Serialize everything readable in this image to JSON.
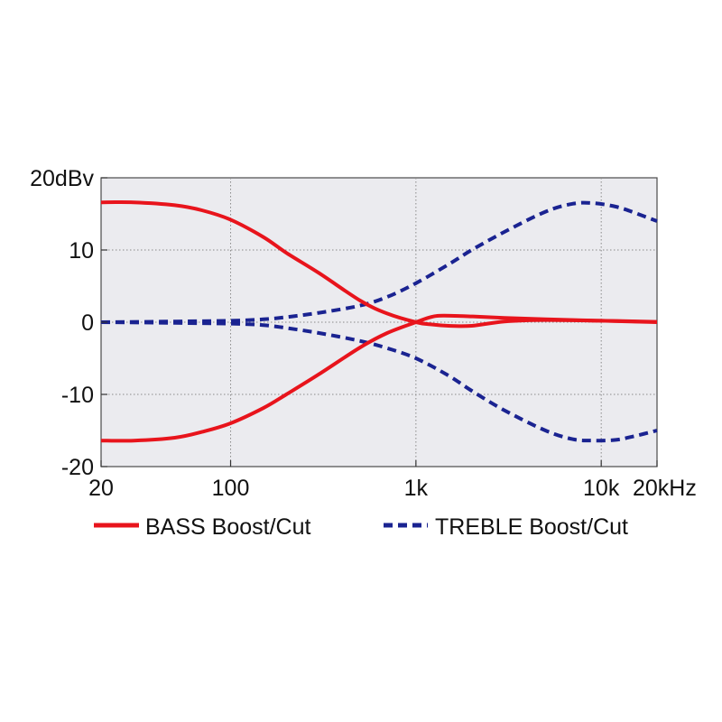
{
  "chart_data": {
    "type": "line",
    "title": "",
    "xlabel": "",
    "ylabel": "",
    "x_scale": "log",
    "xlim": [
      20,
      20000
    ],
    "ylim": [
      -20,
      20
    ],
    "grid": true,
    "legend_position": "bottom",
    "y_ticks": [
      {
        "value": 20,
        "label": "20dBv"
      },
      {
        "value": 10,
        "label": "10"
      },
      {
        "value": 0,
        "label": "0"
      },
      {
        "value": -10,
        "label": "-10"
      },
      {
        "value": -20,
        "label": "-20"
      }
    ],
    "x_ticks": [
      {
        "value": 20,
        "label": "20"
      },
      {
        "value": 100,
        "label": "100"
      },
      {
        "value": 1000,
        "label": "1k"
      },
      {
        "value": 10000,
        "label": "10k"
      },
      {
        "value": 20000,
        "label": "20kHz"
      }
    ],
    "series": [
      {
        "name": "BASS Boost/Cut",
        "color": "#e8141c",
        "style": "solid",
        "curves": [
          [
            [
              20,
              16.6
            ],
            [
              30,
              16.6
            ],
            [
              50,
              16.2
            ],
            [
              70,
              15.5
            ],
            [
              100,
              14.2
            ],
            [
              150,
              11.8
            ],
            [
              200,
              9.6
            ],
            [
              300,
              6.8
            ],
            [
              500,
              3.0
            ],
            [
              700,
              1.2
            ],
            [
              1000,
              0
            ],
            [
              1200,
              -0.3
            ],
            [
              1500,
              -0.5
            ],
            [
              2000,
              -0.5
            ],
            [
              3000,
              0.1
            ],
            [
              5000,
              0.3
            ],
            [
              10000,
              0.2
            ],
            [
              20000,
              0.05
            ]
          ],
          [
            [
              20,
              -16.4
            ],
            [
              30,
              -16.4
            ],
            [
              50,
              -16.0
            ],
            [
              70,
              -15.2
            ],
            [
              100,
              -14.0
            ],
            [
              150,
              -11.9
            ],
            [
              200,
              -10.0
            ],
            [
              300,
              -7.2
            ],
            [
              500,
              -3.5
            ],
            [
              700,
              -1.5
            ],
            [
              1000,
              0
            ],
            [
              1200,
              0.7
            ],
            [
              1400,
              0.9
            ],
            [
              2000,
              0.8
            ],
            [
              3000,
              0.6
            ],
            [
              5000,
              0.4
            ],
            [
              10000,
              0.2
            ],
            [
              20000,
              0
            ]
          ]
        ]
      },
      {
        "name": "TREBLE Boost/Cut",
        "color": "#1a2391",
        "style": "dashed",
        "curves": [
          [
            [
              20,
              0
            ],
            [
              50,
              0.1
            ],
            [
              100,
              0.2
            ],
            [
              150,
              0.4
            ],
            [
              200,
              0.7
            ],
            [
              300,
              1.3
            ],
            [
              500,
              2.3
            ],
            [
              700,
              3.5
            ],
            [
              1000,
              5.4
            ],
            [
              1500,
              8.0
            ],
            [
              2000,
              10.0
            ],
            [
              3000,
              12.5
            ],
            [
              5000,
              15.3
            ],
            [
              7000,
              16.4
            ],
            [
              9000,
              16.5
            ],
            [
              12000,
              16.0
            ],
            [
              15000,
              15.2
            ],
            [
              20000,
              14.0
            ]
          ],
          [
            [
              20,
              0
            ],
            [
              50,
              -0.1
            ],
            [
              100,
              -0.2
            ],
            [
              150,
              -0.4
            ],
            [
              200,
              -0.8
            ],
            [
              300,
              -1.5
            ],
            [
              500,
              -2.6
            ],
            [
              700,
              -3.6
            ],
            [
              1000,
              -5.0
            ],
            [
              1500,
              -7.4
            ],
            [
              2000,
              -9.5
            ],
            [
              3000,
              -12.2
            ],
            [
              5000,
              -15.0
            ],
            [
              7000,
              -16.2
            ],
            [
              9000,
              -16.4
            ],
            [
              12000,
              -16.3
            ],
            [
              15000,
              -15.8
            ],
            [
              20000,
              -15.0
            ]
          ]
        ]
      }
    ]
  }
}
